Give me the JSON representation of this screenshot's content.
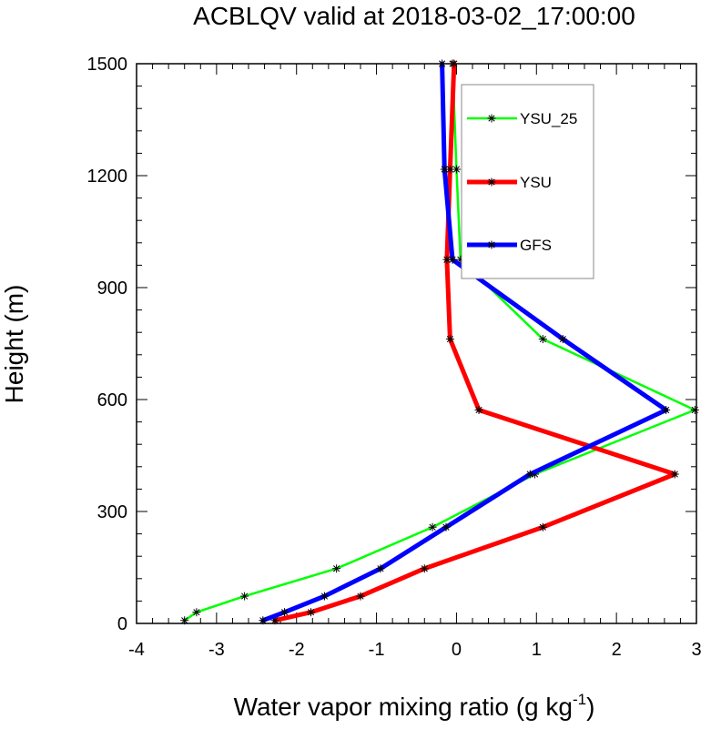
{
  "chart_data": {
    "type": "line",
    "title": "ACBLQV valid at 2018-03-02_17:00:00",
    "xlabel": "Water vapor mixing ratio (g kg",
    "xlabel_sup": "-1",
    "xlabel_end": ")",
    "ylabel": "Height (m)",
    "xlim": [
      -4,
      3
    ],
    "ylim": [
      0,
      1500
    ],
    "xticks": [
      -4,
      -3,
      -2,
      -1,
      0,
      1,
      2,
      3
    ],
    "xtick_labels": [
      "-4",
      "-3",
      "-2",
      "-1",
      "0",
      "1",
      "2",
      "3"
    ],
    "yticks": [
      0,
      300,
      600,
      900,
      1200,
      1500
    ],
    "ytick_labels": [
      "0",
      "300",
      "600",
      "900",
      "1200",
      "1500"
    ],
    "legend_position": "top-right",
    "series": [
      {
        "name": "YSU_25",
        "color": "#00ff00",
        "marker": "star",
        "points": [
          [
            -3.4,
            8
          ],
          [
            -3.25,
            30
          ],
          [
            -2.65,
            73
          ],
          [
            -1.5,
            147
          ],
          [
            -0.3,
            258
          ],
          [
            0.98,
            400
          ],
          [
            2.98,
            572
          ],
          [
            1.08,
            762
          ],
          [
            0.05,
            975
          ],
          [
            0.0,
            1217
          ],
          [
            -0.05,
            1500
          ]
        ]
      },
      {
        "name": "YSU",
        "color": "#ff0000",
        "marker": "star",
        "points": [
          [
            -2.27,
            8
          ],
          [
            -1.82,
            30
          ],
          [
            -1.2,
            73
          ],
          [
            -0.4,
            147
          ],
          [
            1.08,
            258
          ],
          [
            2.73,
            400
          ],
          [
            0.28,
            572
          ],
          [
            -0.08,
            762
          ],
          [
            -0.12,
            975
          ],
          [
            -0.08,
            1217
          ],
          [
            -0.03,
            1500
          ]
        ]
      },
      {
        "name": "GFS",
        "color": "#0000ff",
        "marker": "star",
        "points": [
          [
            -2.42,
            8
          ],
          [
            -2.15,
            30
          ],
          [
            -1.65,
            73
          ],
          [
            -0.95,
            147
          ],
          [
            -0.13,
            258
          ],
          [
            0.92,
            400
          ],
          [
            2.62,
            572
          ],
          [
            1.33,
            762
          ],
          [
            -0.05,
            975
          ],
          [
            -0.15,
            1217
          ],
          [
            -0.18,
            1500
          ]
        ]
      }
    ]
  }
}
